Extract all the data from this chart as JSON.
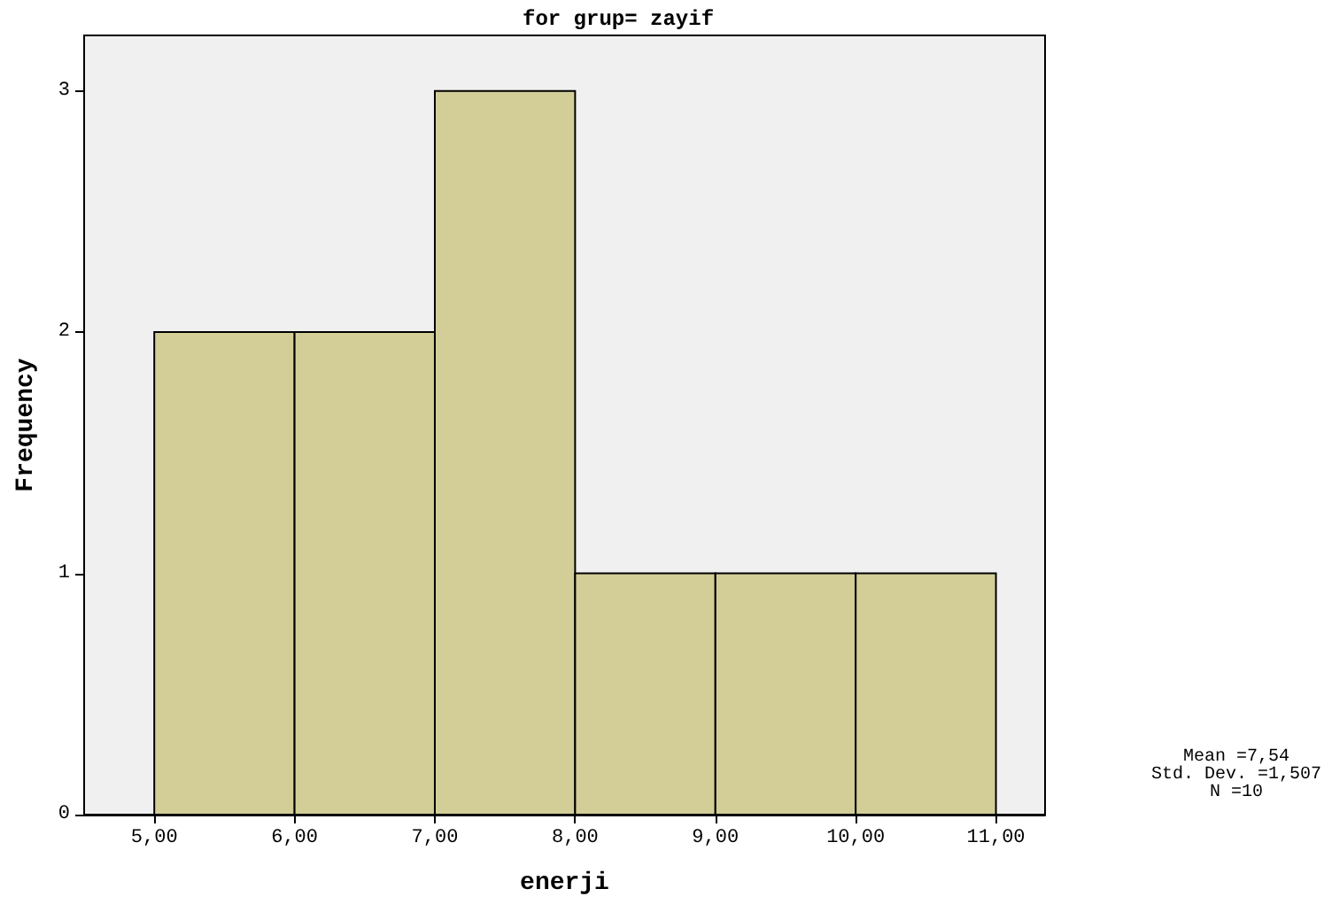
{
  "chart_data": {
    "type": "histogram",
    "title": "for grup= zayif",
    "xlabel": "enerji",
    "ylabel": "Frequency",
    "bins": [
      5,
      6,
      7,
      8,
      9,
      10,
      11
    ],
    "values": [
      2,
      2,
      3,
      1,
      1,
      1
    ],
    "color": "#d3ce98",
    "xlim": [
      4.5,
      11.35
    ],
    "xticks": [
      {
        "value": 5,
        "label": "5,00"
      },
      {
        "value": 6,
        "label": "6,00"
      },
      {
        "value": 7,
        "label": "7,00"
      },
      {
        "value": 8,
        "label": "8,00"
      },
      {
        "value": 9,
        "label": "9,00"
      },
      {
        "value": 10,
        "label": "10,00"
      },
      {
        "value": 11,
        "label": "11,00"
      }
    ],
    "ylim": [
      0,
      3.23
    ],
    "yticks": [
      0,
      1,
      2,
      3
    ],
    "grid": false,
    "annotations": [
      "Mean =7,54",
      "Std. Dev. =1,507",
      "N =10"
    ]
  }
}
